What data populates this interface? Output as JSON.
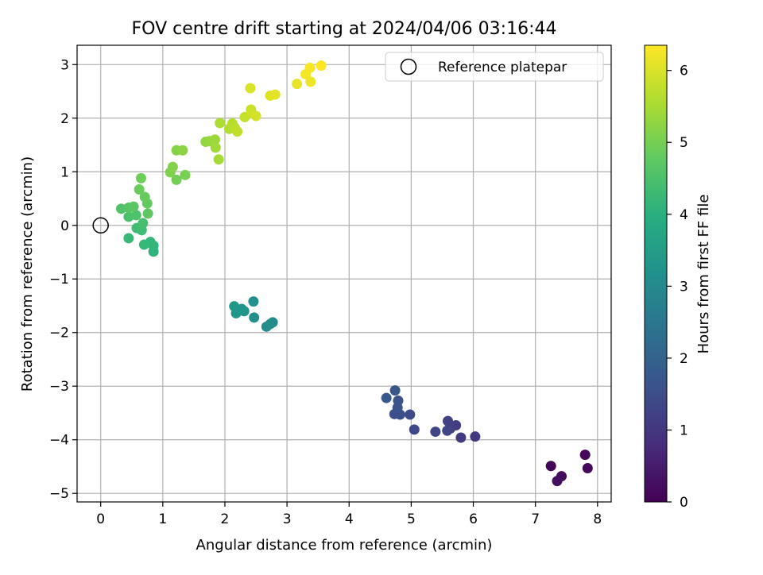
{
  "chart_data": {
    "type": "scatter",
    "title": "FOV centre drift starting at 2024/04/06 03:16:44",
    "xlabel": "Angular distance from reference (arcmin)",
    "ylabel": "Rotation from reference (arcmin)",
    "xlim": [
      -0.38,
      8.22
    ],
    "ylim": [
      -5.16,
      3.36
    ],
    "xticks": [
      0,
      1,
      2,
      3,
      4,
      5,
      6,
      7,
      8
    ],
    "yticks": [
      -5,
      -4,
      -3,
      -2,
      -1,
      0,
      1,
      2,
      3
    ],
    "grid": true,
    "legend": {
      "placement": "top-right",
      "entries": [
        "Reference platepar"
      ]
    },
    "reference_point": {
      "x": 0,
      "y": 0
    },
    "colorbar": {
      "label": "Hours from first FF file",
      "range": [
        0,
        6.35
      ],
      "ticks": [
        0,
        1,
        2,
        3,
        4,
        5,
        6
      ],
      "colormap": "viridis"
    },
    "points": [
      {
        "x": 7.25,
        "y": -4.49,
        "c": 0.05
      },
      {
        "x": 7.8,
        "y": -4.28,
        "c": 0.1
      },
      {
        "x": 7.84,
        "y": -4.53,
        "c": 0.15
      },
      {
        "x": 7.42,
        "y": -4.68,
        "c": 0.2
      },
      {
        "x": 7.35,
        "y": -4.77,
        "c": 0.25
      },
      {
        "x": 6.03,
        "y": -3.94,
        "c": 1.05
      },
      {
        "x": 5.8,
        "y": -3.96,
        "c": 1.1
      },
      {
        "x": 5.72,
        "y": -3.73,
        "c": 1.15
      },
      {
        "x": 5.63,
        "y": -3.79,
        "c": 1.2
      },
      {
        "x": 5.59,
        "y": -3.65,
        "c": 1.25
      },
      {
        "x": 5.58,
        "y": -3.83,
        "c": 1.3
      },
      {
        "x": 5.39,
        "y": -3.85,
        "c": 1.35
      },
      {
        "x": 5.05,
        "y": -3.81,
        "c": 1.4
      },
      {
        "x": 4.98,
        "y": -3.53,
        "c": 1.45
      },
      {
        "x": 4.82,
        "y": -3.53,
        "c": 1.5
      },
      {
        "x": 4.73,
        "y": -3.52,
        "c": 1.55
      },
      {
        "x": 4.78,
        "y": -3.4,
        "c": 1.6
      },
      {
        "x": 4.79,
        "y": -3.27,
        "c": 1.65
      },
      {
        "x": 4.74,
        "y": -3.08,
        "c": 1.7
      },
      {
        "x": 4.6,
        "y": -3.22,
        "c": 1.75
      },
      {
        "x": 2.77,
        "y": -1.81,
        "c": 3.0
      },
      {
        "x": 2.73,
        "y": -1.84,
        "c": 3.05
      },
      {
        "x": 2.67,
        "y": -1.89,
        "c": 3.1
      },
      {
        "x": 2.47,
        "y": -1.72,
        "c": 3.15
      },
      {
        "x": 2.46,
        "y": -1.42,
        "c": 3.2
      },
      {
        "x": 2.31,
        "y": -1.6,
        "c": 3.25
      },
      {
        "x": 2.27,
        "y": -1.56,
        "c": 3.3
      },
      {
        "x": 2.18,
        "y": -1.64,
        "c": 3.35
      },
      {
        "x": 2.15,
        "y": -1.51,
        "c": 3.4
      },
      {
        "x": 0.85,
        "y": -0.49,
        "c": 4.1
      },
      {
        "x": 0.85,
        "y": -0.38,
        "c": 4.15
      },
      {
        "x": 0.8,
        "y": -0.31,
        "c": 4.2
      },
      {
        "x": 0.7,
        "y": -0.36,
        "c": 4.25
      },
      {
        "x": 0.45,
        "y": -0.24,
        "c": 4.3
      },
      {
        "x": 0.66,
        "y": -0.09,
        "c": 4.35
      },
      {
        "x": 0.58,
        "y": -0.05,
        "c": 4.4
      },
      {
        "x": 0.68,
        "y": 0.04,
        "c": 4.45
      },
      {
        "x": 0.45,
        "y": 0.16,
        "c": 4.5
      },
      {
        "x": 0.57,
        "y": 0.19,
        "c": 4.55
      },
      {
        "x": 0.33,
        "y": 0.31,
        "c": 4.6
      },
      {
        "x": 0.45,
        "y": 0.33,
        "c": 4.65
      },
      {
        "x": 0.53,
        "y": 0.35,
        "c": 4.7
      },
      {
        "x": 0.76,
        "y": 0.22,
        "c": 4.75
      },
      {
        "x": 0.75,
        "y": 0.41,
        "c": 4.8
      },
      {
        "x": 0.71,
        "y": 0.53,
        "c": 4.85
      },
      {
        "x": 0.62,
        "y": 0.67,
        "c": 4.9
      },
      {
        "x": 0.65,
        "y": 0.88,
        "c": 4.95
      },
      {
        "x": 1.22,
        "y": 0.85,
        "c": 5.0
      },
      {
        "x": 1.36,
        "y": 0.94,
        "c": 5.05
      },
      {
        "x": 1.12,
        "y": 0.99,
        "c": 5.1
      },
      {
        "x": 1.16,
        "y": 1.09,
        "c": 5.15
      },
      {
        "x": 1.22,
        "y": 1.4,
        "c": 5.2
      },
      {
        "x": 1.32,
        "y": 1.4,
        "c": 5.25
      },
      {
        "x": 1.69,
        "y": 1.56,
        "c": 5.3
      },
      {
        "x": 1.75,
        "y": 1.57,
        "c": 5.35
      },
      {
        "x": 1.84,
        "y": 1.6,
        "c": 5.4
      },
      {
        "x": 1.85,
        "y": 1.45,
        "c": 5.45
      },
      {
        "x": 1.9,
        "y": 1.23,
        "c": 5.5
      },
      {
        "x": 1.92,
        "y": 1.91,
        "c": 5.55
      },
      {
        "x": 2.07,
        "y": 1.8,
        "c": 5.6
      },
      {
        "x": 2.12,
        "y": 1.9,
        "c": 5.65
      },
      {
        "x": 2.16,
        "y": 1.82,
        "c": 5.7
      },
      {
        "x": 2.2,
        "y": 1.75,
        "c": 5.75
      },
      {
        "x": 2.32,
        "y": 2.02,
        "c": 5.8
      },
      {
        "x": 2.42,
        "y": 2.16,
        "c": 5.85
      },
      {
        "x": 2.43,
        "y": 2.09,
        "c": 5.9
      },
      {
        "x": 2.5,
        "y": 2.04,
        "c": 5.95
      },
      {
        "x": 2.41,
        "y": 2.56,
        "c": 6.0
      },
      {
        "x": 2.73,
        "y": 2.42,
        "c": 6.05
      },
      {
        "x": 2.81,
        "y": 2.44,
        "c": 6.1
      },
      {
        "x": 3.16,
        "y": 2.64,
        "c": 6.15
      },
      {
        "x": 3.38,
        "y": 2.68,
        "c": 6.2
      },
      {
        "x": 3.3,
        "y": 2.82,
        "c": 6.25
      },
      {
        "x": 3.37,
        "y": 2.94,
        "c": 6.3
      },
      {
        "x": 3.55,
        "y": 2.98,
        "c": 6.35
      }
    ]
  }
}
